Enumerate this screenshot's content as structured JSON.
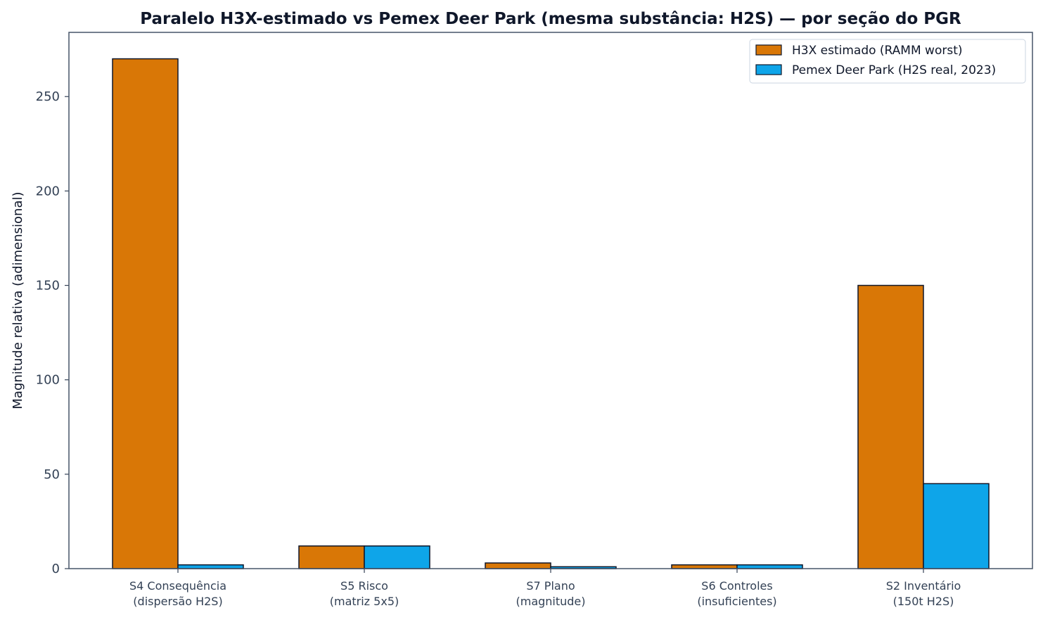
{
  "chart_data": {
    "type": "bar",
    "title": "Paralelo H3X-estimado vs Pemex Deer Park (mesma substância: H2S) — por seção do PGR",
    "ylabel": "Magnitude relativa (adimensional)",
    "xlabel": "",
    "ylim": [
      0,
      284
    ],
    "yticks": [
      0,
      50,
      100,
      150,
      200,
      250
    ],
    "grid": false,
    "legend_position": "top-right",
    "categories": [
      [
        "S4 Consequência",
        "(dispersão H2S)"
      ],
      [
        "S5 Risco",
        "(matriz 5x5)"
      ],
      [
        "S7 Plano",
        "(magnitude)"
      ],
      [
        "S6 Controles",
        "(insuficientes)"
      ],
      [
        "S2 Inventário",
        "(150t H2S)"
      ]
    ],
    "series": [
      {
        "name": "H3X estimado (RAMM worst)",
        "color": "#d97706",
        "values": [
          270,
          12,
          3,
          2,
          150
        ]
      },
      {
        "name": "Pemex Deer Park (H2S real, 2023)",
        "color": "#0ea5e9",
        "values": [
          2,
          12,
          1,
          2,
          45
        ]
      }
    ]
  }
}
